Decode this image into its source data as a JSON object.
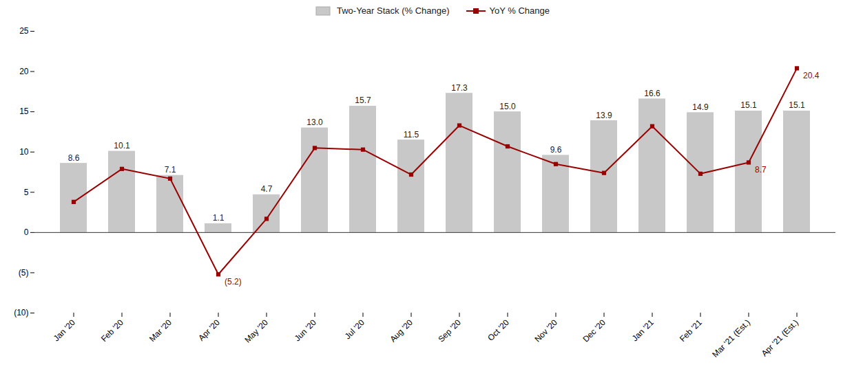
{
  "chart_data": {
    "type": "combo",
    "categories": [
      "Jan '20",
      "Feb '20",
      "Mar '20",
      "Apr '20",
      "May '20",
      "Jun '20",
      "Jul '20",
      "Aug '20",
      "Sep '20",
      "Oct '20",
      "Nov '20",
      "Dec '20",
      "Jan '21",
      "Feb '21",
      "Mar '21 (Est.)",
      "Apr '21 (Est.)"
    ],
    "series": [
      {
        "name": "Two-Year Stack (% Change)",
        "type": "bar",
        "color": "#c8c8c8",
        "values": [
          8.6,
          10.1,
          7.1,
          1.1,
          4.7,
          13.0,
          15.7,
          11.5,
          17.3,
          15.0,
          9.6,
          13.9,
          16.6,
          14.9,
          15.1,
          15.1
        ],
        "data_labels": true,
        "value_labels": [
          "8.6",
          "10.1",
          "7.1",
          "1.1",
          "4.7",
          "13.0",
          "15.7",
          "11.5",
          "17.3",
          "15.0",
          "9.6",
          "13.9",
          "16.6",
          "14.9",
          "15.1",
          "15.1"
        ]
      },
      {
        "name": "YoY % Change",
        "type": "line",
        "color": "#990000",
        "marker": "square",
        "values": [
          3.8,
          7.9,
          6.7,
          -5.2,
          1.7,
          10.5,
          10.3,
          7.2,
          13.3,
          10.7,
          8.5,
          7.4,
          13.2,
          7.3,
          8.7,
          20.4
        ],
        "data_labels": true,
        "value_labels": [
          null,
          null,
          null,
          "(5.2)",
          null,
          null,
          null,
          null,
          null,
          null,
          null,
          null,
          null,
          null,
          "8.7",
          "20.4"
        ]
      }
    ],
    "ylim": [
      -10,
      25
    ],
    "yticks": [
      {
        "value": -10,
        "label": "(10)"
      },
      {
        "value": -5,
        "label": "(5)"
      },
      0,
      5,
      10,
      15,
      20,
      25
    ],
    "grid": false,
    "legend": "top"
  }
}
